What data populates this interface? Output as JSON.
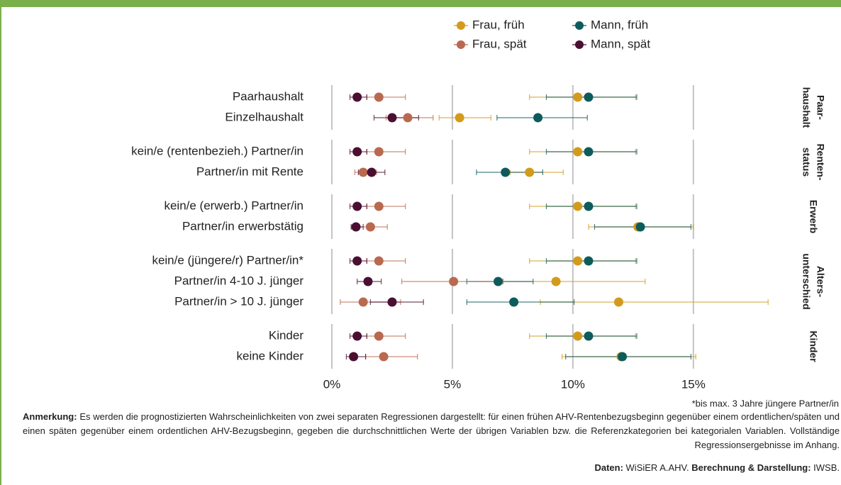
{
  "chart_data": {
    "type": "dot_errorbar",
    "facets": [
      {
        "label": [
          "Paar-",
          "haushalt"
        ],
        "categories": [
          "Paarhaushalt",
          "Einzelhaushalt"
        ]
      },
      {
        "label": [
          "Renten-",
          "status"
        ],
        "categories": [
          "kein/e (rentenbezieh.) Partner/in",
          "Partner/in mit Rente"
        ]
      },
      {
        "label": [
          "Erwerb"
        ],
        "categories": [
          "kein/e (erwerb.) Partner/in",
          "Partner/in erwerbstätig"
        ]
      },
      {
        "label": [
          "Alters-",
          "unterschied"
        ],
        "categories": [
          "kein/e (jüngere/r) Partner/in*",
          "Partner/in 4-10 J. jünger",
          "Partner/in > 10 J. jünger"
        ]
      },
      {
        "label": [
          "Kinder"
        ],
        "categories": [
          "Kinder",
          "keine Kinder"
        ]
      }
    ],
    "series": [
      {
        "name": "Frau, früh",
        "color": "#d39b1c",
        "values": [
          10.2,
          5.3,
          10.2,
          8.2,
          10.2,
          12.7,
          10.2,
          9.3,
          11.9,
          10.2,
          12.0
        ],
        "lower": [
          8.2,
          4.45,
          8.2,
          7.4,
          8.2,
          10.65,
          8.2,
          7.1,
          8.65,
          8.2,
          9.55
        ],
        "upper": [
          12.6,
          6.6,
          12.6,
          9.6,
          12.6,
          15.0,
          12.6,
          13.0,
          18.1,
          12.6,
          15.1
        ]
      },
      {
        "name": "Mann, früh",
        "color": "#0e5b5c",
        "values": [
          10.65,
          8.55,
          10.65,
          7.2,
          10.65,
          12.8,
          10.65,
          6.9,
          7.55,
          10.65,
          12.05
        ],
        "lower": [
          8.9,
          6.85,
          8.9,
          6.0,
          8.9,
          10.9,
          8.9,
          5.6,
          5.6,
          8.9,
          9.7
        ],
        "upper": [
          12.65,
          10.6,
          12.65,
          8.75,
          12.65,
          14.9,
          12.65,
          8.35,
          10.05,
          12.65,
          14.9
        ]
      },
      {
        "name": "Frau, spät",
        "color": "#b9694f",
        "values": [
          1.95,
          3.15,
          1.95,
          1.3,
          1.95,
          1.6,
          1.95,
          5.05,
          1.3,
          1.95,
          2.15
        ],
        "lower": [
          1.45,
          2.25,
          1.45,
          0.95,
          1.45,
          0.95,
          1.45,
          2.9,
          0.35,
          1.45,
          1.4
        ],
        "upper": [
          3.05,
          4.2,
          3.05,
          1.85,
          3.05,
          2.3,
          3.05,
          7.1,
          2.85,
          3.05,
          3.55
        ]
      },
      {
        "name": "Mann, spät",
        "color": "#4a0f31",
        "values": [
          1.05,
          2.5,
          1.05,
          1.65,
          1.05,
          1.0,
          1.05,
          1.5,
          2.5,
          1.05,
          0.9
        ],
        "lower": [
          0.75,
          1.75,
          0.75,
          1.1,
          0.75,
          0.8,
          0.75,
          1.05,
          1.6,
          0.75,
          0.6
        ],
        "upper": [
          1.45,
          3.6,
          1.45,
          2.2,
          1.45,
          1.3,
          1.45,
          2.05,
          3.8,
          1.45,
          1.4
        ]
      }
    ],
    "xlim": [
      0,
      18.3
    ],
    "xticks": [
      {
        "value": 0,
        "label": "0%"
      },
      {
        "value": 5,
        "label": "5%"
      },
      {
        "value": 10,
        "label": "10%"
      },
      {
        "value": 15,
        "label": "15%"
      }
    ],
    "grid": true,
    "legend": "top",
    "footnote": "*bis max. 3 Jahre jüngere Partner/in"
  },
  "note": {
    "label": "Anmerkung:",
    "text": " Es werden die prognostizierten Wahrscheinlichkeiten von zwei separaten Regressionen dargestellt: für einen frühen AHV-Rentenbezugsbeginn gegenüber einem ordentlichen/späten und einen späten gegenüber einem ordentlichen AHV-Bezugsbeginn, gegeben die durchschnittlichen Werte der übrigen Variablen bzw. die Referenzkategorien bei kategorialen Variablen. Vollständige Regressionsergebnisse im Anhang."
  },
  "source": {
    "data_label": "Daten:",
    "data": " WiSiER A.AHV. ",
    "calc_label": "Berechnung & Darstellung:",
    "calc": " IWSB."
  }
}
